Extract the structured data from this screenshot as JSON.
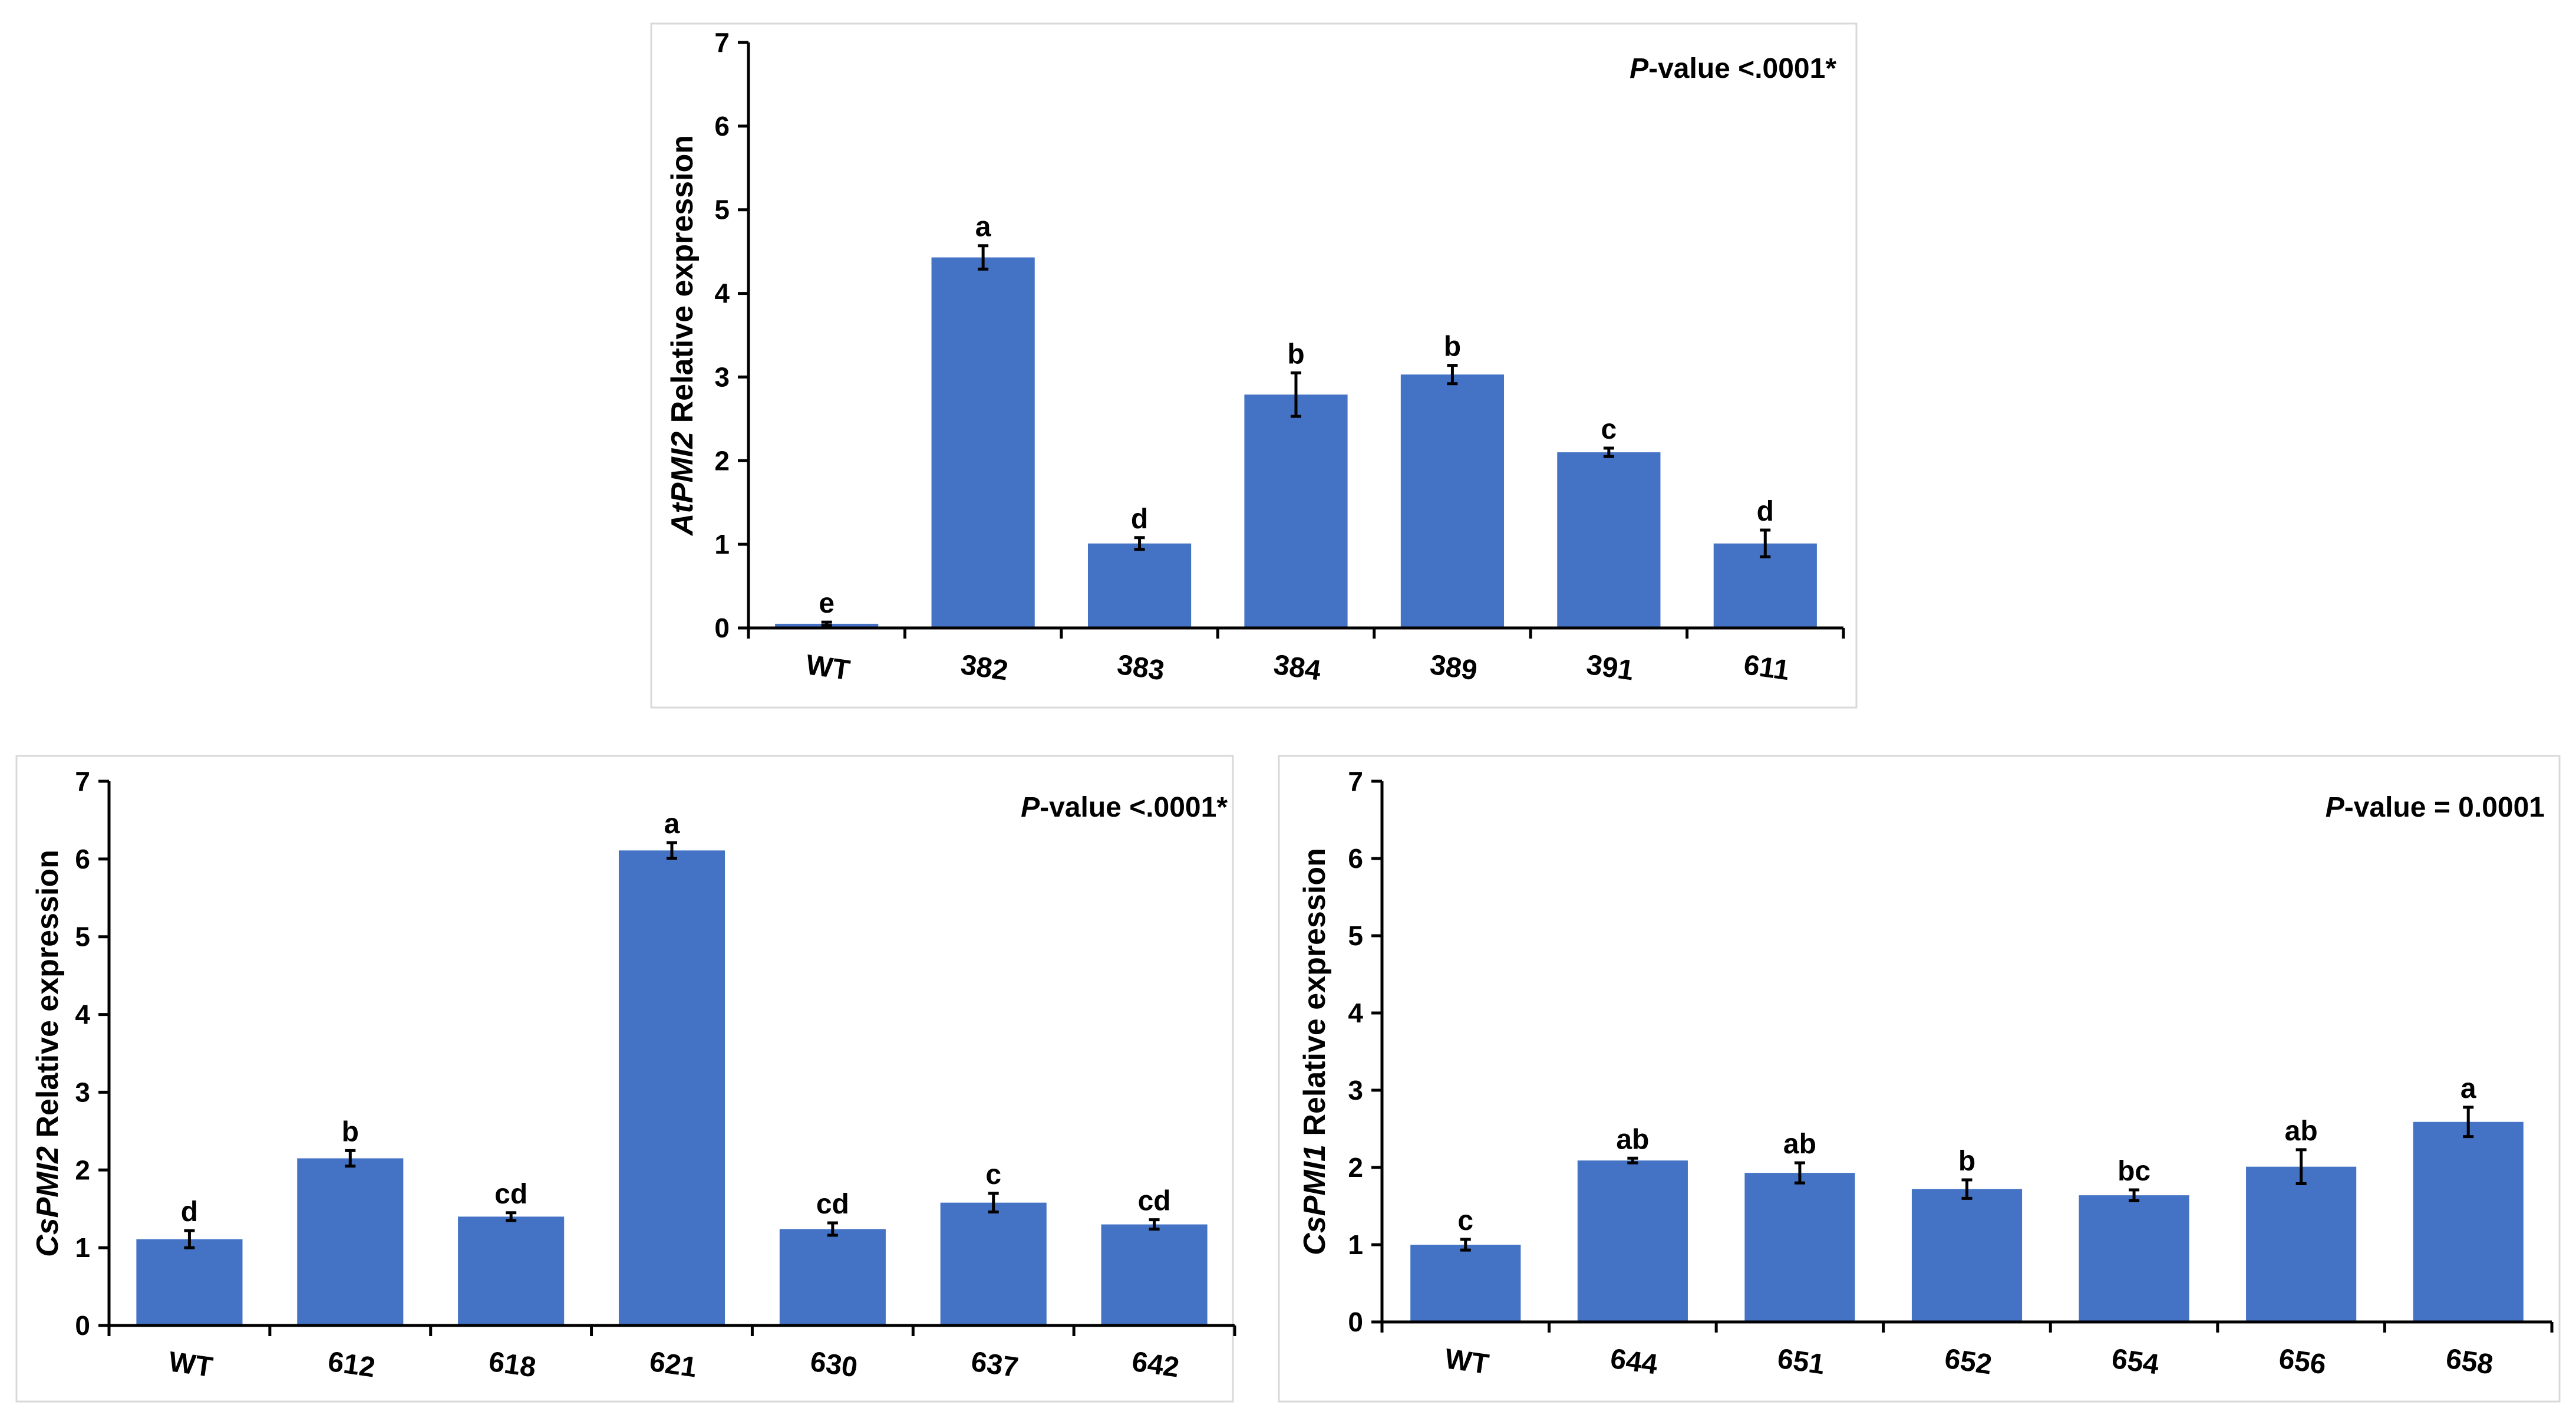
{
  "chart_data": [
    {
      "type": "bar",
      "gene": "AtPMI2",
      "ylabel_suffix": " Relative expression",
      "p_prefix": "P",
      "p_text": "-value <.0001*",
      "categories": [
        "WT",
        "382",
        "383",
        "384",
        "389",
        "391",
        "611"
      ],
      "values": [
        0.05,
        4.43,
        1.01,
        2.79,
        3.03,
        2.1,
        1.01
      ],
      "errors": [
        0.02,
        0.14,
        0.07,
        0.26,
        0.11,
        0.05,
        0.16
      ],
      "letters": [
        "e",
        "a",
        "d",
        "b",
        "b",
        "c",
        "d"
      ],
      "ylim": [
        0,
        7
      ],
      "yticks": [
        "0",
        "1",
        "2",
        "3",
        "4",
        "5",
        "6",
        "7"
      ]
    },
    {
      "type": "bar",
      "gene": "CsPMI2",
      "ylabel_suffix": " Relative expression",
      "p_prefix": "P",
      "p_text": "-value <.0001*",
      "categories": [
        "WT",
        "612",
        "618",
        "621",
        "630",
        "637",
        "642"
      ],
      "values": [
        1.11,
        2.15,
        1.4,
        6.11,
        1.24,
        1.58,
        1.3
      ],
      "errors": [
        0.11,
        0.1,
        0.05,
        0.1,
        0.08,
        0.12,
        0.06
      ],
      "letters": [
        "d",
        "b",
        "cd",
        "a",
        "cd",
        "c",
        "cd"
      ],
      "ylim": [
        0,
        7
      ],
      "yticks": [
        "0",
        "1",
        "2",
        "3",
        "4",
        "5",
        "6",
        "7"
      ]
    },
    {
      "type": "bar",
      "gene": "CsPMI1",
      "ylabel_suffix": " Relative expression",
      "p_prefix": "P",
      "p_text": "-value = 0.0001",
      "categories": [
        "WT",
        "644",
        "651",
        "652",
        "654",
        "656",
        "658"
      ],
      "values": [
        1.0,
        2.09,
        1.93,
        1.72,
        1.64,
        2.01,
        2.59
      ],
      "errors": [
        0.07,
        0.03,
        0.13,
        0.12,
        0.07,
        0.22,
        0.19
      ],
      "letters": [
        "c",
        "ab",
        "ab",
        "b",
        "bc",
        "ab",
        "a"
      ],
      "ylim": [
        0,
        7
      ],
      "yticks": [
        "0",
        "1",
        "2",
        "3",
        "4",
        "5",
        "6",
        "7"
      ]
    }
  ]
}
